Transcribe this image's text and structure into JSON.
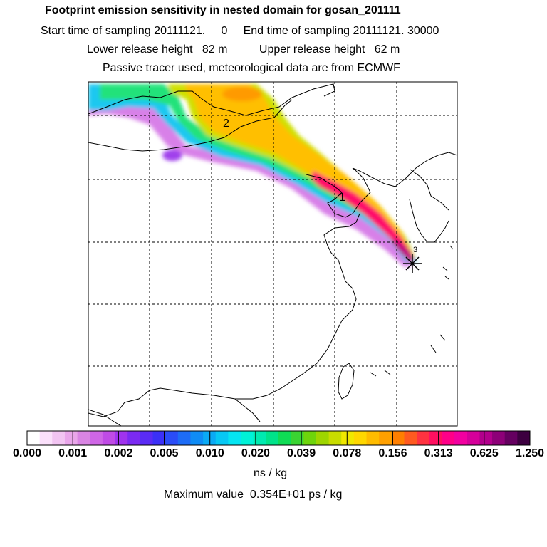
{
  "header": {
    "title": "Footprint emission sensitivity in nested domain for gosan_201111",
    "line2": "Start time of sampling 20111121.     0     End time of sampling 20111121. 30000",
    "line3": "Lower release height   82 m          Upper release height   62 m",
    "line4": "Passive tracer used, meteorological data are from ECMWF"
  },
  "map": {
    "markers": [
      {
        "label": "2"
      },
      {
        "label": "1"
      },
      {
        "label": "3"
      }
    ]
  },
  "colorbar": {
    "ticks": [
      "0.000",
      "0.001",
      "0.002",
      "0.005",
      "0.010",
      "0.020",
      "0.039",
      "0.078",
      "0.156",
      "0.313",
      "0.625",
      "1.250"
    ],
    "colors": [
      "#ffffff",
      "#fbe0fb",
      "#f2c4f2",
      "#e9a6ea",
      "#d985e3",
      "#cf66e6",
      "#c04be6",
      "#a033ee",
      "#7b2af2",
      "#5a2bf5",
      "#3b30f7",
      "#2a4cf7",
      "#1d6cf6",
      "#0f8cf5",
      "#0aaaf5",
      "#07c8f4",
      "#05e5f2",
      "#00f2d8",
      "#00eab0",
      "#00e38a",
      "#10dc55",
      "#3ad432",
      "#6ed40b",
      "#9ed500",
      "#c8dc00",
      "#f0e800",
      "#ffd700",
      "#ffbc00",
      "#ffa000",
      "#ff7f00",
      "#ff5a20",
      "#ff3340",
      "#ff1060",
      "#ff0088",
      "#f200a0",
      "#d5009a",
      "#b2008c",
      "#8d0078",
      "#650060",
      "#3d0040"
    ],
    "unit": "ns / kg"
  },
  "footer": {
    "max_value": "Maximum value  0.354E+01 ps / kg"
  }
}
